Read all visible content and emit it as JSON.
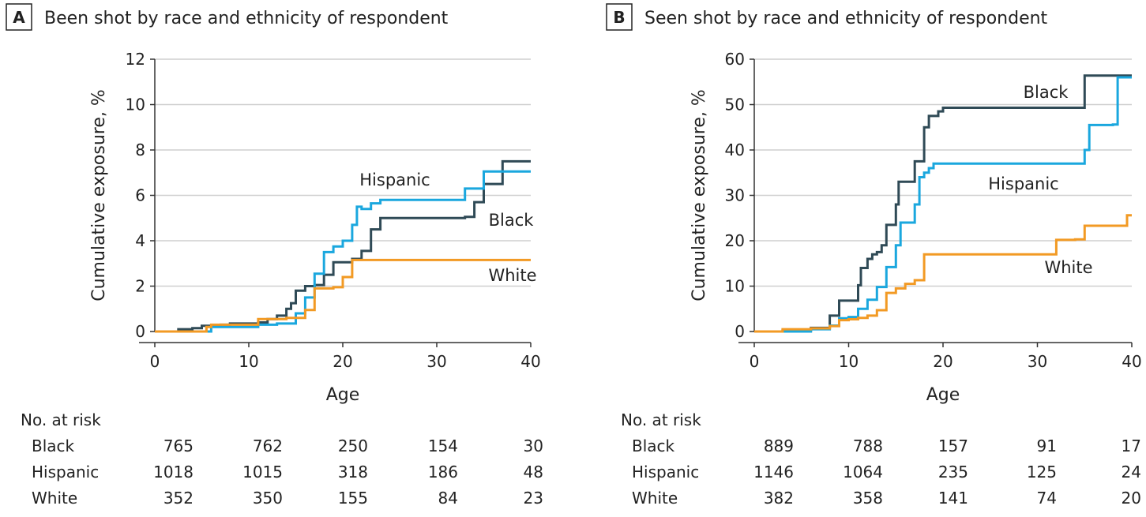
{
  "chart_data": [
    {
      "type": "line",
      "panel_letter": "A",
      "title": "Been shot by race and ethnicity of respondent",
      "xlabel": "Age",
      "ylabel": "Cumulative exposure, %",
      "xlim": [
        0,
        40
      ],
      "ylim": [
        0,
        12
      ],
      "xticks": [
        0,
        10,
        20,
        30,
        40
      ],
      "yticks": [
        0,
        2,
        4,
        6,
        8,
        10,
        12
      ],
      "grid": "horizontal",
      "step": true,
      "series": [
        {
          "name": "Black",
          "color": "#2f4a56",
          "points": [
            [
              0,
              0
            ],
            [
              2,
              0
            ],
            [
              2.5,
              0.1
            ],
            [
              4,
              0.15
            ],
            [
              5,
              0.25
            ],
            [
              7,
              0.3
            ],
            [
              8,
              0.35
            ],
            [
              11,
              0.4
            ],
            [
              12,
              0.55
            ],
            [
              13,
              0.7
            ],
            [
              14,
              1.0
            ],
            [
              14.5,
              1.25
            ],
            [
              15,
              1.8
            ],
            [
              16,
              2.0
            ],
            [
              17,
              2.05
            ],
            [
              18,
              2.5
            ],
            [
              19,
              3.05
            ],
            [
              21,
              3.2
            ],
            [
              22,
              3.55
            ],
            [
              23,
              4.5
            ],
            [
              24,
              5.0
            ],
            [
              33,
              5.05
            ],
            [
              34,
              5.7
            ],
            [
              35,
              6.5
            ],
            [
              37,
              7.5
            ],
            [
              40,
              7.5
            ]
          ]
        },
        {
          "name": "Hispanic",
          "color": "#1aa7de",
          "points": [
            [
              0,
              0
            ],
            [
              5,
              0
            ],
            [
              6,
              0.2
            ],
            [
              11,
              0.3
            ],
            [
              13,
              0.35
            ],
            [
              15,
              0.8
            ],
            [
              16,
              1.5
            ],
            [
              17,
              2.55
            ],
            [
              18,
              3.5
            ],
            [
              19,
              3.75
            ],
            [
              20,
              4.0
            ],
            [
              21,
              4.7
            ],
            [
              21.5,
              5.5
            ],
            [
              22,
              5.4
            ],
            [
              23,
              5.65
            ],
            [
              24,
              5.8
            ],
            [
              33,
              6.3
            ],
            [
              35,
              7.05
            ],
            [
              40,
              7.05
            ]
          ]
        },
        {
          "name": "White",
          "color": "#f29a24",
          "points": [
            [
              0,
              0
            ],
            [
              5,
              0
            ],
            [
              5.5,
              0.2
            ],
            [
              6,
              0.3
            ],
            [
              11,
              0.55
            ],
            [
              14,
              0.6
            ],
            [
              16,
              0.95
            ],
            [
              17,
              1.9
            ],
            [
              19,
              1.95
            ],
            [
              20,
              2.4
            ],
            [
              21,
              3.15
            ],
            [
              40,
              3.15
            ]
          ]
        }
      ],
      "risk_table": {
        "title": "No. at risk",
        "times": [
          0,
          10,
          20,
          30,
          40
        ],
        "rows": [
          {
            "name": "Black",
            "values": [
              "765",
              "762",
              "250",
              "154",
              "30"
            ]
          },
          {
            "name": "Hispanic",
            "values": [
              "1018",
              "1015",
              "318",
              "186",
              "48"
            ]
          },
          {
            "name": "White",
            "values": [
              "352",
              "350",
              "155",
              "84",
              "23"
            ]
          }
        ]
      }
    },
    {
      "type": "line",
      "panel_letter": "B",
      "title": "Seen shot by race and ethnicity of respondent",
      "xlabel": "Age",
      "ylabel": "Cumulative exposure, %",
      "xlim": [
        0,
        40
      ],
      "ylim": [
        0,
        60
      ],
      "xticks": [
        0,
        10,
        20,
        30,
        40
      ],
      "yticks": [
        0,
        10,
        20,
        30,
        40,
        50,
        60
      ],
      "grid": "horizontal",
      "step": true,
      "series": [
        {
          "name": "Black",
          "color": "#2f4a56",
          "points": [
            [
              0,
              0
            ],
            [
              3,
              0.2
            ],
            [
              6,
              0.8
            ],
            [
              8,
              3.5
            ],
            [
              9,
              6.8
            ],
            [
              11,
              10.2
            ],
            [
              11.3,
              14
            ],
            [
              12,
              16
            ],
            [
              12.5,
              17
            ],
            [
              13,
              17.5
            ],
            [
              13.5,
              19
            ],
            [
              14,
              23.5
            ],
            [
              15,
              28
            ],
            [
              15.3,
              33
            ],
            [
              17,
              37.5
            ],
            [
              18,
              45
            ],
            [
              18.5,
              47.5
            ],
            [
              19.5,
              48.5
            ],
            [
              20,
              49.3
            ],
            [
              35,
              56.4
            ],
            [
              40,
              56.4
            ]
          ]
        },
        {
          "name": "Hispanic",
          "color": "#1aa7de",
          "points": [
            [
              0,
              0
            ],
            [
              6,
              0.5
            ],
            [
              8,
              1.3
            ],
            [
              9,
              2.9
            ],
            [
              10,
              3.2
            ],
            [
              11,
              5
            ],
            [
              12,
              7
            ],
            [
              13,
              9.8
            ],
            [
              14,
              14.2
            ],
            [
              15,
              19
            ],
            [
              15.5,
              24
            ],
            [
              17,
              28
            ],
            [
              17.5,
              34
            ],
            [
              18,
              35
            ],
            [
              18.5,
              36
            ],
            [
              19,
              37
            ],
            [
              34,
              37
            ],
            [
              35,
              40
            ],
            [
              35.5,
              45.5
            ],
            [
              38,
              45.6
            ],
            [
              38.5,
              56
            ],
            [
              40,
              56
            ]
          ]
        },
        {
          "name": "White",
          "color": "#f29a24",
          "points": [
            [
              0,
              0
            ],
            [
              3,
              0.5
            ],
            [
              6,
              0.7
            ],
            [
              8,
              1.2
            ],
            [
              9,
              2.5
            ],
            [
              10,
              2.7
            ],
            [
              11,
              3
            ],
            [
              12,
              3.5
            ],
            [
              13,
              4.7
            ],
            [
              14,
              8.5
            ],
            [
              15,
              9.5
            ],
            [
              16,
              10.5
            ],
            [
              17,
              11.3
            ],
            [
              18,
              17
            ],
            [
              27,
              17
            ],
            [
              32,
              20.2
            ],
            [
              34,
              20.3
            ],
            [
              35,
              23.3
            ],
            [
              39,
              23.3
            ],
            [
              39.5,
              25.6
            ],
            [
              40,
              25.6
            ]
          ]
        }
      ],
      "risk_table": {
        "title": "No. at risk",
        "times": [
          0,
          10,
          20,
          30,
          40
        ],
        "rows": [
          {
            "name": "Black",
            "values": [
              "889",
              "788",
              "157",
              "91",
              "17"
            ]
          },
          {
            "name": "Hispanic",
            "values": [
              "1146",
              "1064",
              "235",
              "125",
              "24"
            ]
          },
          {
            "name": "White",
            "values": [
              "382",
              "358",
              "141",
              "74",
              "20"
            ]
          }
        ]
      }
    }
  ]
}
